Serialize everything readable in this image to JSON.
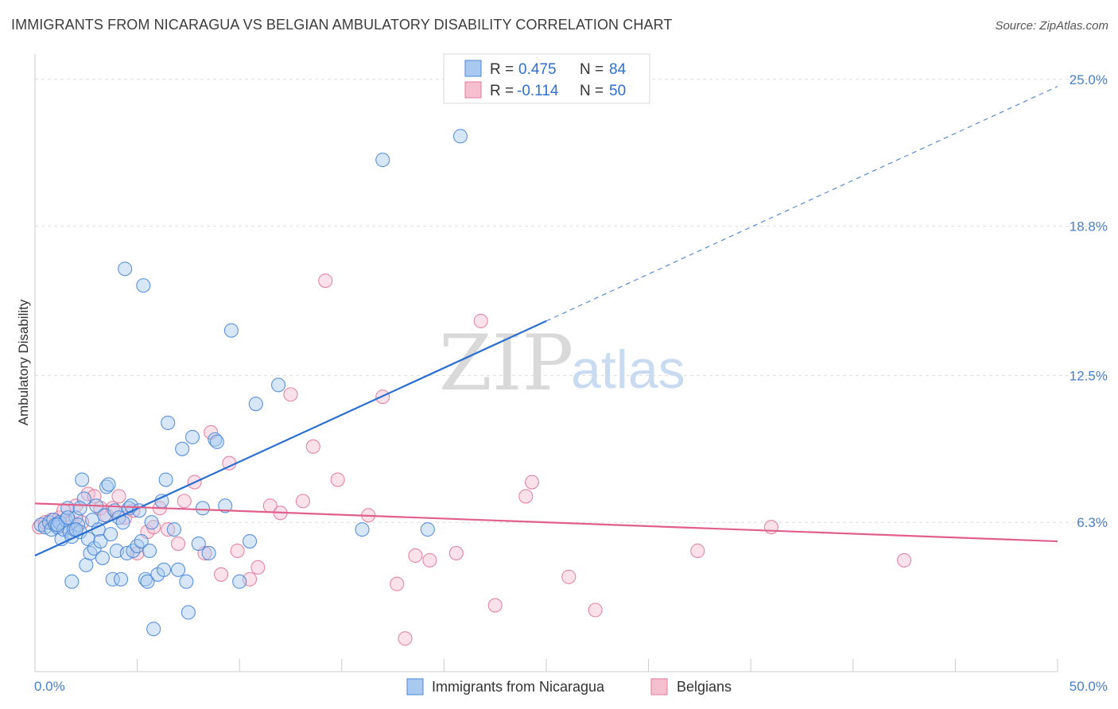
{
  "header": {
    "title": "IMMIGRANTS FROM NICARAGUA VS BELGIAN AMBULATORY DISABILITY CORRELATION CHART",
    "source": "Source: ZipAtlas.com"
  },
  "watermark": {
    "zip": "ZIP",
    "atlas": "atlas"
  },
  "colors": {
    "blue_fill": "#a9c9f0",
    "blue_stroke": "#4a86d6",
    "blue_line": "#2a6fd0",
    "pink_fill": "#f6bfd0",
    "pink_stroke": "#e07a9c",
    "pink_line": "#e0608a",
    "tick_text": "#4a7fc9",
    "grid": "#dddddd"
  },
  "stats": {
    "blue": {
      "r_label": "R =",
      "r_value": "0.475",
      "n_label": "N =",
      "n_value": "84"
    },
    "pink": {
      "r_label": "R =",
      "r_value": "-0.114",
      "n_label": "N =",
      "n_value": "50"
    }
  },
  "chart_data": {
    "type": "scatter",
    "title": "IMMIGRANTS FROM NICARAGUA VS BELGIAN AMBULATORY DISABILITY CORRELATION CHART",
    "xlabel": "",
    "ylabel": "Ambulatory Disability",
    "xlim": [
      0,
      50
    ],
    "ylim": [
      0,
      26
    ],
    "x_tick_labels": [
      "0.0%",
      "50.0%"
    ],
    "y_ticks": [
      6.3,
      12.5,
      18.8,
      25.0
    ],
    "y_tick_labels": [
      "6.3%",
      "12.5%",
      "18.8%",
      "25.0%"
    ],
    "grid": "horizontal dashed",
    "legend_position": "bottom-center",
    "series": [
      {
        "name": "Immigrants from Nicaragua",
        "color": "#4a86d6",
        "trend": {
          "x0": 0,
          "y0": 4.9,
          "x1": 25,
          "y1": 14.8,
          "dashed_to_x": 50,
          "dashed_to_y": 24.7
        },
        "points": [
          [
            0.3,
            6.2
          ],
          [
            0.5,
            6.1
          ],
          [
            0.7,
            6.3
          ],
          [
            0.8,
            6.0
          ],
          [
            0.9,
            6.4
          ],
          [
            1.0,
            6.2
          ],
          [
            1.1,
            6.1
          ],
          [
            1.2,
            6.3
          ],
          [
            1.3,
            5.6
          ],
          [
            1.4,
            6.0
          ],
          [
            1.5,
            6.4
          ],
          [
            1.6,
            6.9
          ],
          [
            1.7,
            5.9
          ],
          [
            1.8,
            5.7
          ],
          [
            1.9,
            6.0
          ],
          [
            2.0,
            6.5
          ],
          [
            2.1,
            6.2
          ],
          [
            2.2,
            5.9
          ],
          [
            1.8,
            3.8
          ],
          [
            2.0,
            6.0
          ],
          [
            2.3,
            8.1
          ],
          [
            2.4,
            7.3
          ],
          [
            2.5,
            4.5
          ],
          [
            2.6,
            5.6
          ],
          [
            2.7,
            5.0
          ],
          [
            2.8,
            6.4
          ],
          [
            2.9,
            5.2
          ],
          [
            3.0,
            7.0
          ],
          [
            3.1,
            6.0
          ],
          [
            3.2,
            5.5
          ],
          [
            3.3,
            4.8
          ],
          [
            3.4,
            6.6
          ],
          [
            3.5,
            7.8
          ],
          [
            3.6,
            7.9
          ],
          [
            3.7,
            5.8
          ],
          [
            3.8,
            3.9
          ],
          [
            3.9,
            6.8
          ],
          [
            4.0,
            5.1
          ],
          [
            4.1,
            6.5
          ],
          [
            4.2,
            3.9
          ],
          [
            4.3,
            6.3
          ],
          [
            4.4,
            17.0
          ],
          [
            4.5,
            5.0
          ],
          [
            4.6,
            6.9
          ],
          [
            4.7,
            7.0
          ],
          [
            4.8,
            5.1
          ],
          [
            5.0,
            5.3
          ],
          [
            5.1,
            6.8
          ],
          [
            5.2,
            5.5
          ],
          [
            5.3,
            16.3
          ],
          [
            5.4,
            3.9
          ],
          [
            5.5,
            3.8
          ],
          [
            5.6,
            5.1
          ],
          [
            5.7,
            6.3
          ],
          [
            5.8,
            1.8
          ],
          [
            6.0,
            4.1
          ],
          [
            6.2,
            7.2
          ],
          [
            6.3,
            4.3
          ],
          [
            6.4,
            8.1
          ],
          [
            6.5,
            10.5
          ],
          [
            6.8,
            6.0
          ],
          [
            7.0,
            4.3
          ],
          [
            7.2,
            9.4
          ],
          [
            7.4,
            3.8
          ],
          [
            7.5,
            2.5
          ],
          [
            7.7,
            9.9
          ],
          [
            8.0,
            5.4
          ],
          [
            8.2,
            6.9
          ],
          [
            8.5,
            5.0
          ],
          [
            8.8,
            9.8
          ],
          [
            8.9,
            9.7
          ],
          [
            9.3,
            7.0
          ],
          [
            9.6,
            14.4
          ],
          [
            10.0,
            3.8
          ],
          [
            10.5,
            5.5
          ],
          [
            10.8,
            11.3
          ],
          [
            11.9,
            12.1
          ],
          [
            16.0,
            6.0
          ],
          [
            17.0,
            21.6
          ],
          [
            19.2,
            6.0
          ],
          [
            20.8,
            22.6
          ],
          [
            1.1,
            6.2
          ],
          [
            1.6,
            6.5
          ],
          [
            2.2,
            6.9
          ]
        ]
      },
      {
        "name": "Belgians",
        "color": "#e07a9c",
        "trend": {
          "x0": 0,
          "y0": 7.1,
          "x1": 50,
          "y1": 5.5
        },
        "points": [
          [
            0.2,
            6.1
          ],
          [
            0.5,
            6.3
          ],
          [
            0.8,
            6.4
          ],
          [
            1.0,
            6.2
          ],
          [
            1.2,
            6.5
          ],
          [
            1.4,
            6.8
          ],
          [
            1.6,
            6.1
          ],
          [
            1.8,
            6.3
          ],
          [
            2.0,
            7.0
          ],
          [
            2.3,
            6.3
          ],
          [
            2.6,
            7.5
          ],
          [
            2.9,
            7.4
          ],
          [
            3.2,
            6.9
          ],
          [
            3.5,
            6.6
          ],
          [
            3.8,
            6.9
          ],
          [
            4.1,
            7.4
          ],
          [
            4.4,
            6.5
          ],
          [
            4.8,
            6.8
          ],
          [
            5.0,
            5.0
          ],
          [
            5.5,
            5.9
          ],
          [
            5.8,
            6.1
          ],
          [
            6.1,
            6.9
          ],
          [
            6.5,
            6.0
          ],
          [
            7.0,
            5.4
          ],
          [
            7.3,
            7.2
          ],
          [
            7.8,
            8.0
          ],
          [
            8.3,
            5.0
          ],
          [
            8.6,
            10.1
          ],
          [
            9.1,
            4.1
          ],
          [
            9.5,
            8.8
          ],
          [
            9.9,
            5.1
          ],
          [
            10.5,
            3.9
          ],
          [
            10.9,
            4.4
          ],
          [
            11.5,
            7.0
          ],
          [
            12.0,
            6.7
          ],
          [
            12.5,
            11.7
          ],
          [
            13.1,
            7.2
          ],
          [
            13.6,
            9.5
          ],
          [
            14.2,
            16.5
          ],
          [
            14.8,
            8.1
          ],
          [
            16.3,
            6.6
          ],
          [
            17.0,
            11.6
          ],
          [
            17.7,
            3.7
          ],
          [
            18.1,
            1.4
          ],
          [
            18.6,
            4.9
          ],
          [
            19.3,
            4.7
          ],
          [
            20.6,
            5.0
          ],
          [
            21.8,
            14.8
          ],
          [
            22.5,
            2.8
          ],
          [
            24.3,
            8.0
          ]
        ],
        "extra_points": [
          [
            24.0,
            7.4
          ],
          [
            26.1,
            4.0
          ],
          [
            27.4,
            2.6
          ],
          [
            32.4,
            5.1
          ],
          [
            36.0,
            6.1
          ],
          [
            42.5,
            4.7
          ]
        ]
      }
    ]
  },
  "legend": {
    "items": [
      {
        "label": "Immigrants from Nicaragua"
      },
      {
        "label": "Belgians"
      }
    ]
  }
}
